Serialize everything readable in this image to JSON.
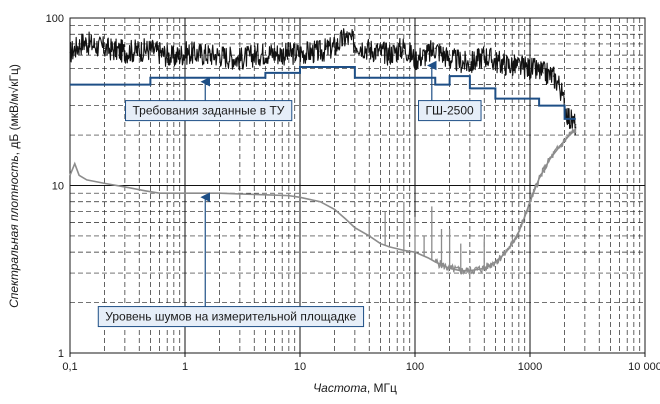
{
  "chart_data": {
    "type": "line",
    "xscale": "log",
    "yscale": "log",
    "xlim": [
      0.1,
      10000
    ],
    "ylim": [
      1,
      100
    ],
    "grid": true,
    "xlabel_italic": "Частота",
    "xlabel_unit": ", МГц",
    "ylabel_italic": "Спектральная плотность",
    "ylabel_unit": ", дБ (мкВ/м√кГц)",
    "x_tick_labels": [
      {
        "value": 0.1,
        "label": "0,1"
      },
      {
        "value": 1,
        "label": "1"
      },
      {
        "value": 10,
        "label": "10"
      },
      {
        "value": 100,
        "label": "100"
      },
      {
        "value": 1000,
        "label": "1000"
      },
      {
        "value": 10000,
        "label": "10 000"
      }
    ],
    "y_tick_labels": [
      {
        "value": 1,
        "label": "1"
      },
      {
        "value": 10,
        "label": "10"
      },
      {
        "value": 100,
        "label": "100"
      }
    ],
    "series": [
      {
        "name": "ГШ-2500",
        "color": "#111111",
        "style": "noisy-band",
        "x": [
          0.1,
          0.13,
          0.2,
          0.3,
          0.5,
          0.8,
          1,
          2,
          3,
          5,
          8,
          10,
          15,
          20,
          25,
          30,
          40,
          60,
          80,
          100,
          130,
          150,
          200,
          300,
          400,
          500,
          700,
          1000,
          1300,
          1600,
          1800,
          2000,
          2200,
          2500
        ],
        "values": [
          62,
          72,
          66,
          63,
          65,
          58,
          62,
          60,
          57,
          62,
          61,
          62,
          63,
          67,
          77,
          71,
          65,
          61,
          67,
          57,
          61,
          66,
          57,
          53,
          60,
          55,
          52,
          50,
          47,
          45,
          40,
          30,
          25,
          23
        ]
      },
      {
        "name": "Требования заданные в ТУ",
        "color": "#1e4f86",
        "style": "step",
        "x": [
          0.1,
          0.5,
          0.5,
          5,
          5,
          10,
          10,
          30,
          30,
          150,
          150,
          200,
          200,
          300,
          300,
          500,
          500,
          1200,
          1200,
          2000,
          2000,
          2500
        ],
        "values": [
          40,
          40,
          44,
          44,
          47,
          47,
          51,
          51,
          44,
          44,
          40,
          40,
          45,
          45,
          38,
          38,
          33,
          33,
          30,
          30,
          25,
          25
        ]
      },
      {
        "name": "Уровень шумов на измерительной площадке",
        "color": "#8c8c8c",
        "style": "line",
        "x": [
          0.1,
          0.11,
          0.12,
          0.14,
          0.2,
          0.3,
          0.45,
          0.6,
          0.8,
          1,
          1.5,
          2,
          3,
          5,
          8,
          10,
          15,
          20,
          25,
          30,
          40,
          50,
          60,
          80,
          100,
          130,
          150,
          180,
          200,
          250,
          300,
          400,
          500,
          600,
          700,
          800,
          900,
          1000,
          1200,
          1500,
          1800,
          2000,
          2200,
          2500
        ],
        "values": [
          11.5,
          13.5,
          11.5,
          10.8,
          10.3,
          9.8,
          9.3,
          9.0,
          9.0,
          9.0,
          9.0,
          9.0,
          8.9,
          8.8,
          8.7,
          8.5,
          8.0,
          7.2,
          6.3,
          5.6,
          5.0,
          4.5,
          4.3,
          4.1,
          4.0,
          3.7,
          3.5,
          3.3,
          3.2,
          3.1,
          3.1,
          3.2,
          3.5,
          3.9,
          4.5,
          5.3,
          6.5,
          8.0,
          11.0,
          14.5,
          17.0,
          18.5,
          20.0,
          21.5
        ]
      }
    ],
    "spikes": {
      "color": "#8c8c8c",
      "x": [
        40,
        55,
        80,
        100,
        120,
        140,
        170,
        200,
        250,
        400
      ],
      "values": [
        6.5,
        7.0,
        8.0,
        6.5,
        5.0,
        7.5,
        5.5,
        5.5,
        4.5,
        4.8
      ]
    },
    "annotations": [
      {
        "text": "Требования заданные в ТУ",
        "x": 1.6,
        "y": 28,
        "arrow_to": [
          1.5,
          44
        ]
      },
      {
        "text": "ГШ-2500",
        "x": 200,
        "y": 28,
        "arrow_to": [
          140,
          55
        ]
      },
      {
        "text": "Уровень шумов на измерительной площадке",
        "x": 2.5,
        "y": 1.65,
        "arrow_to": [
          1.5,
          9.0
        ]
      }
    ]
  }
}
